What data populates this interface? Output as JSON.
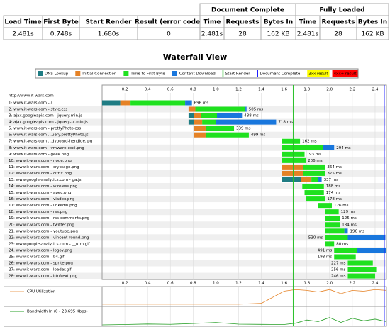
{
  "table": {
    "groups": [
      "Document Complete",
      "Fully Loaded"
    ],
    "columns": [
      "Load Time",
      "First Byte",
      "Start Render",
      "Result (error code)",
      "Time",
      "Requests",
      "Bytes In",
      "Time",
      "Requests",
      "Bytes In"
    ],
    "rows": [
      [
        "2.481s",
        "0.748s",
        "1.680s",
        "0",
        "2.481s",
        "28",
        "162 KB",
        "2.481s",
        "28",
        "162 KB"
      ]
    ]
  },
  "chart_data": {
    "type": "waterfall",
    "title": "Waterfall View",
    "page_url": "http://www.it-wars.com",
    "categories": [
      "1: www.it-wars.com - /",
      "2: www.it-wars.com - style.css",
      "3: ajax.googleapis.com - jquery.min.js",
      "4: ajax.googleapis.com - jquery-ui.min.js",
      "5: www.it-wars.com - prettyPhoto.css",
      "6: www.it-wars.com ...uery.prettyPhoto.js",
      "7: www.it-wars.com ...dyboard-hendige.jpg",
      "8: www.it-wars.com - vmware-esxi.png",
      "9: www.it-wars.com - geek.png",
      "10: www.it-wars.com - node.png",
      "11: www.it-wars.com - cryptage.png",
      "12: www.it-wars.com - citrix.png",
      "13: www.google-analytics.com - ga.js",
      "14: www.it-wars.com - wireless.png",
      "15: www.it-wars.com - apec.png",
      "16: www.it-wars.com - viadeo.png",
      "17: www.it-wars.com - linkedin.png",
      "18: www.it-wars.com - rss.png",
      "19: www.it-wars.com - rss-comments.png",
      "20: www.it-wars.com - twitter.png",
      "21: www.it-wars.com - youtube.png",
      "22: www.it-wars.com - vincent-round.png",
      "23: www.google-analytics.com - __utm.gif",
      "24: www.it-wars.com - logov.png",
      "25: www.it-wars.com - b4.gif",
      "26: www.it-wars.com - sprite.png",
      "27: www.it-wars.com - loader.gif",
      "28: www.it-wars.com - btnNext.png"
    ],
    "starts": [
      0,
      0.76,
      0.76,
      0.76,
      0.81,
      0.81,
      1.58,
      1.58,
      1.58,
      1.58,
      1.58,
      1.58,
      1.58,
      1.76,
      1.78,
      1.79,
      1.9,
      1.96,
      1.96,
      1.96,
      1.96,
      1.96,
      1.96,
      2.04,
      2.04,
      2.16,
      2.16,
      2.16
    ],
    "series": [
      {
        "name": "DNS Lookup",
        "color": "#1f7c83",
        "values": [
          0.16,
          0,
          0.05,
          0.05,
          0,
          0,
          0,
          0,
          0,
          0,
          0,
          0,
          0.17,
          0,
          0,
          0,
          0,
          0,
          0,
          0,
          0,
          0,
          0,
          0,
          0,
          0,
          0,
          0
        ]
      },
      {
        "name": "Initial Connection",
        "color": "#e58226",
        "values": [
          0.09,
          0.06,
          0.06,
          0.07,
          0.1,
          0.1,
          0,
          0,
          0,
          0,
          0.19,
          0.19,
          0.09,
          0,
          0,
          0,
          0,
          0,
          0,
          0,
          0,
          0,
          0,
          0,
          0,
          0,
          0,
          0
        ]
      },
      {
        "name": "Time to First Byte",
        "color": "#1fe11f",
        "values": [
          0.48,
          0.44,
          0.14,
          0.12,
          0.25,
          0.38,
          0.16,
          0.36,
          0.2,
          0.21,
          0.19,
          0.19,
          0.06,
          0.19,
          0.17,
          0.17,
          0.12,
          0.12,
          0.13,
          0.13,
          0.17,
          0.2,
          0.08,
          0.2,
          0.19,
          0.22,
          0.25,
          0.24
        ]
      },
      {
        "name": "Content Download",
        "color": "#1977dd",
        "values": [
          0.06,
          0.01,
          0.22,
          0.53,
          0,
          0,
          0,
          0.1,
          0,
          0,
          0,
          0,
          0.03,
          0,
          0,
          0,
          0,
          0,
          0,
          0,
          0.03,
          0.33,
          0,
          0.26,
          0,
          0,
          0,
          0
        ]
      }
    ],
    "durations": [
      "696 ms",
      "505 ms",
      "488 ms",
      "718 ms",
      "339 ms",
      "499 ms",
      "162 ms",
      "294 ms",
      "193 ms",
      "206 ms",
      "364 ms",
      "375 ms",
      "337 ms",
      "188 ms",
      "174 ms",
      "178 ms",
      "126 ms",
      "129 ms",
      "125 ms",
      "134 ms",
      "196 ms",
      "530 ms",
      "80 ms",
      "491 ms",
      "193 ms",
      "227 ms",
      "256 ms",
      "246 ms"
    ],
    "markers": [
      {
        "name": "Start Render",
        "color": "#28c028",
        "value": 1.68
      },
      {
        "name": "Document Complete",
        "color": "#1a1aff",
        "value": 2.481
      }
    ],
    "status_legend": [
      {
        "name": "3xx result",
        "color": "#ffff00"
      },
      {
        "name": "4xx+ result",
        "color": "#ff0000"
      }
    ],
    "xlim": [
      0,
      2.5
    ],
    "xticks": [
      0.2,
      0.4,
      0.6,
      0.8,
      {
        "value": 1,
        "label": "1.0"
      },
      1.2,
      1.4,
      1.6,
      1.8,
      {
        "value": 2,
        "label": "2.0"
      },
      2.2,
      2.4
    ],
    "grid": true,
    "cpu": {
      "name": "CPU Utilization",
      "color": "#e58226",
      "x": [
        0,
        0.2,
        0.4,
        0.6,
        0.8,
        1,
        1.2,
        1.4,
        1.6,
        1.7,
        1.8,
        1.9,
        2,
        2.1,
        2.2,
        2.3,
        2.4,
        2.5
      ],
      "values": [
        5,
        5,
        5,
        5,
        5,
        5,
        5,
        10,
        85,
        95,
        90,
        80,
        95,
        70,
        90,
        85,
        95,
        90
      ],
      "ylim": [
        0,
        100
      ]
    },
    "bandwidth": {
      "name": "Bandwidth In (0 - 23,695 Kbps)",
      "color": "#28a028",
      "x": [
        0,
        0.2,
        0.4,
        0.6,
        0.8,
        1,
        1.2,
        1.4,
        1.6,
        1.7,
        1.8,
        1.9,
        2,
        2.1,
        2.2,
        2.3,
        2.4,
        2.5
      ],
      "values": [
        0,
        500,
        1200,
        800,
        2000,
        3500,
        1000,
        700,
        500,
        2400,
        7000,
        4700,
        10600,
        3500,
        9500,
        5900,
        8300,
        4700
      ],
      "ylim": [
        0,
        23695
      ]
    }
  }
}
